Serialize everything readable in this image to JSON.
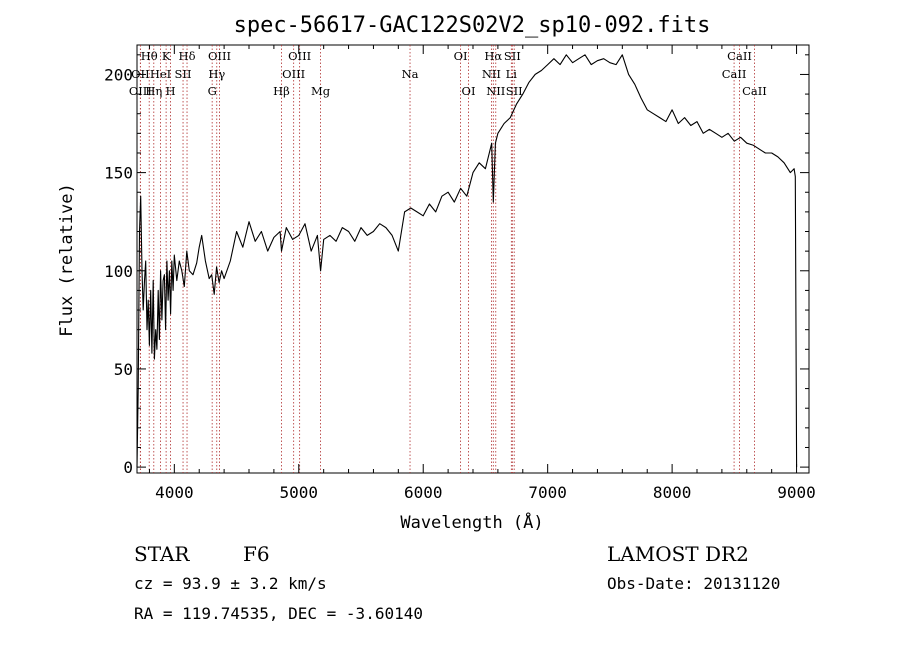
{
  "chart_data": {
    "type": "line",
    "title": "spec-56617-GAC122S02V2_sp10-092.fits",
    "xlabel": "Wavelength (Å)",
    "ylabel": "Flux (relative)",
    "xlim": [
      3700,
      9100
    ],
    "ylim": [
      -3,
      215
    ],
    "x_ticks": [
      4000,
      5000,
      6000,
      7000,
      8000,
      9000
    ],
    "y_ticks": [
      0,
      50,
      100,
      150,
      200
    ],
    "grid": false,
    "series": [
      {
        "x": [
          3700,
          3710,
          3720,
          3730,
          3740,
          3750,
          3760,
          3770,
          3780,
          3790,
          3800,
          3810,
          3820,
          3830,
          3840,
          3850,
          3860,
          3870,
          3880,
          3890,
          3900,
          3910,
          3920,
          3930,
          3940,
          3950,
          3960,
          3970,
          3980,
          3990,
          4000,
          4020,
          4040,
          4060,
          4080,
          4100,
          4120,
          4150,
          4180,
          4200,
          4220,
          4250,
          4280,
          4300,
          4320,
          4340,
          4360,
          4380,
          4400,
          4450,
          4500,
          4550,
          4600,
          4650,
          4700,
          4750,
          4800,
          4850,
          4861,
          4900,
          4950,
          5000,
          5050,
          5100,
          5150,
          5175,
          5200,
          5250,
          5300,
          5350,
          5400,
          5450,
          5500,
          5550,
          5600,
          5650,
          5700,
          5750,
          5800,
          5850,
          5900,
          5950,
          6000,
          6050,
          6100,
          6150,
          6200,
          6250,
          6300,
          6350,
          6400,
          6450,
          6500,
          6550,
          6563,
          6580,
          6600,
          6650,
          6700,
          6750,
          6800,
          6850,
          6900,
          6950,
          7000,
          7050,
          7100,
          7150,
          7200,
          7250,
          7300,
          7350,
          7400,
          7450,
          7500,
          7550,
          7600,
          7650,
          7700,
          7750,
          7800,
          7850,
          7900,
          7950,
          8000,
          8050,
          8100,
          8150,
          8200,
          8250,
          8300,
          8350,
          8400,
          8450,
          8500,
          8550,
          8600,
          8650,
          8700,
          8750,
          8800,
          8850,
          8900,
          8950,
          8980,
          8990,
          9000
        ],
        "y": [
          0,
          40,
          120,
          138,
          100,
          80,
          95,
          105,
          70,
          85,
          62,
          90,
          58,
          95,
          55,
          70,
          60,
          90,
          65,
          100,
          75,
          95,
          98,
          70,
          105,
          85,
          100,
          78,
          105,
          90,
          108,
          95,
          105,
          100,
          92,
          110,
          100,
          98,
          104,
          112,
          118,
          105,
          96,
          98,
          88,
          102,
          94,
          100,
          96,
          105,
          120,
          112,
          125,
          115,
          120,
          110,
          117,
          120,
          110,
          122,
          116,
          118,
          124,
          110,
          118,
          100,
          116,
          118,
          115,
          122,
          120,
          115,
          122,
          118,
          120,
          124,
          122,
          118,
          110,
          130,
          132,
          130,
          128,
          134,
          130,
          138,
          140,
          135,
          142,
          138,
          150,
          155,
          152,
          165,
          135,
          165,
          170,
          175,
          178,
          185,
          190,
          196,
          200,
          202,
          205,
          208,
          205,
          210,
          206,
          208,
          210,
          205,
          207,
          208,
          206,
          205,
          210,
          200,
          195,
          188,
          182,
          180,
          178,
          176,
          182,
          175,
          178,
          174,
          176,
          170,
          172,
          170,
          168,
          170,
          166,
          168,
          165,
          164,
          162,
          160,
          160,
          158,
          155,
          150,
          152,
          148,
          0
        ],
        "color": "#000000"
      }
    ],
    "line_ids": [
      {
        "name": "Hθ",
        "x": 3798,
        "row": 1
      },
      {
        "name": "OII",
        "x": 3727,
        "row": 2
      },
      {
        "name": "OIII",
        "x": 3727,
        "row": 3
      },
      {
        "name": "Hη",
        "x": 3835,
        "row": 3
      },
      {
        "name": "HeI",
        "x": 3889,
        "row": 2
      },
      {
        "name": "K",
        "x": 3934,
        "row": 1
      },
      {
        "name": "H",
        "x": 3969,
        "row": 3
      },
      {
        "name": "SII",
        "x": 4070,
        "row": 2
      },
      {
        "name": "Hδ",
        "x": 4102,
        "row": 1
      },
      {
        "name": "G",
        "x": 4304,
        "row": 3
      },
      {
        "name": "Hγ",
        "x": 4341,
        "row": 2
      },
      {
        "name": "OIII",
        "x": 4363,
        "row": 1
      },
      {
        "name": "Hβ",
        "x": 4861,
        "row": 3
      },
      {
        "name": "OIII",
        "x": 4959,
        "row": 2
      },
      {
        "name": "OIII",
        "x": 5007,
        "row": 1
      },
      {
        "name": "Mg",
        "x": 5175,
        "row": 3
      },
      {
        "name": "Na",
        "x": 5894,
        "row": 2
      },
      {
        "name": "OI",
        "x": 6300,
        "row": 1
      },
      {
        "name": "OI",
        "x": 6364,
        "row": 3
      },
      {
        "name": "Hα",
        "x": 6563,
        "row": 1
      },
      {
        "name": "NII",
        "x": 6548,
        "row": 2
      },
      {
        "name": "NII",
        "x": 6583,
        "row": 3
      },
      {
        "name": "SII",
        "x": 6716,
        "row": 1
      },
      {
        "name": "Li",
        "x": 6708,
        "row": 2
      },
      {
        "name": "SII",
        "x": 6731,
        "row": 3
      },
      {
        "name": "CaII",
        "x": 8498,
        "row": 2
      },
      {
        "name": "CaII",
        "x": 8542,
        "row": 1
      },
      {
        "name": "CaII",
        "x": 8662,
        "row": 3
      }
    ],
    "line_marker_color": "#b03030"
  },
  "info": {
    "object_class": "STAR",
    "subclass": "F6",
    "cz": "cz = 93.9 ± 3.2 km/s",
    "radec": "RA = 119.74535, DEC =  -3.60140",
    "survey": "LAMOST DR2",
    "obs_date": "Obs-Date: 20131120"
  }
}
